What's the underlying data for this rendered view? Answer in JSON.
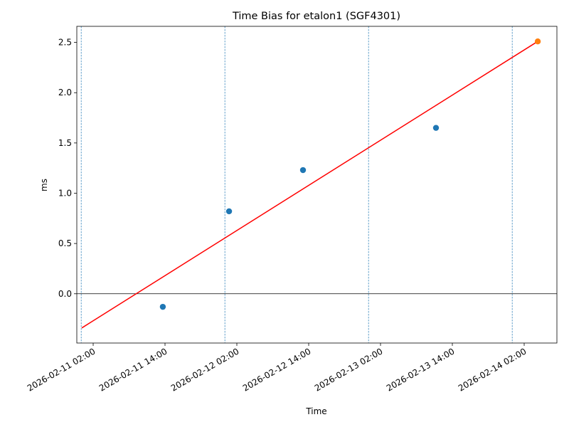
{
  "chart_data": {
    "type": "scatter",
    "title": "Time Bias for etalon1 (SGF4301)",
    "xlabel": "Time",
    "ylabel": "ms",
    "xlim": [
      "2026-02-10 23:16",
      "2026-02-14 07:28"
    ],
    "xticks": [
      "2026-02-11 02:00",
      "2026-02-11 14:00",
      "2026-02-12 02:00",
      "2026-02-12 14:00",
      "2026-02-13 02:00",
      "2026-02-13 14:00",
      "2026-02-14 02:00"
    ],
    "ylim": [
      -0.49,
      2.66
    ],
    "yticks": [
      {
        "value": 0,
        "label": "0.0"
      },
      0.5,
      {
        "value": 1,
        "label": "1.0"
      },
      1.5,
      {
        "value": 2,
        "label": "2.0"
      },
      2.5
    ],
    "series": [
      {
        "type": "scatter",
        "color": "#1f77b4",
        "x": [
          "2026-02-11 13:38",
          "2026-02-12 00:42",
          "2026-02-12 13:03",
          "2026-02-13 11:16"
        ],
        "values": [
          -0.13,
          0.82,
          1.23,
          1.65
        ]
      },
      {
        "type": "scatter",
        "color": "#ff7f0e",
        "x": [
          "2026-02-14 04:16"
        ],
        "values": [
          2.51
        ]
      },
      {
        "type": "line",
        "color": "#ff0000",
        "x": [
          "2026-02-11 00:06",
          "2026-02-14 04:16"
        ],
        "values": [
          -0.34,
          2.51
        ]
      }
    ],
    "vlines": {
      "color": "#1f77b4",
      "x": [
        "2026-02-11 00:00",
        "2026-02-12 00:00",
        "2026-02-13 00:00",
        "2026-02-14 00:00"
      ]
    },
    "hline": {
      "color": "#000000",
      "y": 0
    }
  }
}
